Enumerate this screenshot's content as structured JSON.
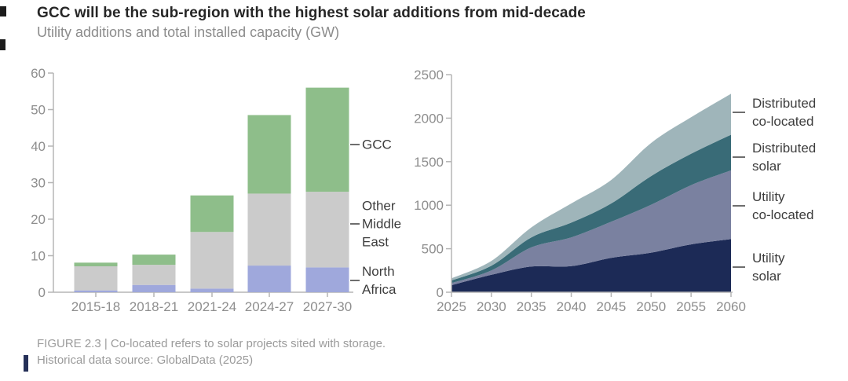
{
  "header": {
    "title": "GCC will be the sub-region with the highest solar additions from mid-decade",
    "subtitle": "Utility additions and total installed capacity (GW)"
  },
  "footer": {
    "line1": "FIGURE 2.3 | Co-located refers to solar projects sited with storage.",
    "line2": "Historical data source: GlobalData (2025)"
  },
  "colors": {
    "bar_north_africa": "#9fa8dc",
    "bar_other_middle_east": "#cbcbcb",
    "bar_gcc": "#8ebe8a",
    "area_utility_solar": "#1c2a56",
    "area_utility_colocated": "#7a81a0",
    "area_distributed_solar": "#396b77",
    "area_distributed_colocated": "#9fb5ba",
    "axis": "#b5b5b5",
    "tick_label": "#8e8e8e"
  },
  "chart_data": [
    {
      "type": "bar",
      "title": "Utility additions (GW)",
      "categories": [
        "2015-18",
        "2018-21",
        "2021-24",
        "2024-27",
        "2027-30"
      ],
      "series": [
        {
          "name": "North Africa",
          "color": "#9fa8dc",
          "values": [
            0.5,
            2.0,
            1.0,
            7.3,
            6.8
          ]
        },
        {
          "name": "Other Middle East",
          "color": "#cbcbcb",
          "values": [
            6.6,
            5.5,
            15.5,
            19.7,
            20.7
          ]
        },
        {
          "name": "GCC",
          "color": "#8ebe8a",
          "values": [
            1.0,
            2.8,
            10.0,
            21.5,
            28.5
          ]
        }
      ],
      "ylim": [
        0,
        60
      ],
      "yticks": [
        0,
        10,
        20,
        30,
        40,
        50,
        60
      ],
      "grid": false,
      "legend_position": "right-annotations",
      "annotations": [
        {
          "lines": [
            "GCC"
          ],
          "value": 40.5
        },
        {
          "lines": [
            "Other",
            "Middle",
            "East"
          ],
          "value": 18.7
        },
        {
          "lines": [
            "North",
            "Africa"
          ],
          "value": 3.2
        }
      ]
    },
    {
      "type": "area",
      "title": "Total installed capacity (GW)",
      "x": [
        2025,
        2030,
        2035,
        2040,
        2045,
        2050,
        2055,
        2060
      ],
      "series": [
        {
          "name": "Utility solar",
          "color": "#1c2a56",
          "values": [
            80,
            200,
            295,
            300,
            395,
            455,
            550,
            610
          ]
        },
        {
          "name": "Utility co-located",
          "color": "#7a81a0",
          "values": [
            25,
            50,
            220,
            330,
            415,
            550,
            680,
            790
          ]
        },
        {
          "name": "Distributed solar",
          "color": "#396b77",
          "values": [
            30,
            55,
            115,
            170,
            210,
            330,
            360,
            410
          ]
        },
        {
          "name": "Distributed co-located",
          "color": "#9fb5ba",
          "values": [
            25,
            55,
            115,
            220,
            270,
            380,
            420,
            470
          ]
        }
      ],
      "ylim": [
        0,
        2500
      ],
      "yticks": [
        0,
        500,
        1000,
        1500,
        2000,
        2500
      ],
      "xticks": [
        2025,
        2030,
        2035,
        2040,
        2045,
        2050,
        2055,
        2060
      ],
      "grid": false,
      "legend_position": "right-annotations",
      "annotations": [
        {
          "lines": [
            "Distributed",
            "co-located"
          ],
          "value": 2065
        },
        {
          "lines": [
            "Distributed",
            "solar"
          ],
          "value": 1550
        },
        {
          "lines": [
            "Utility",
            "co-located"
          ],
          "value": 990
        },
        {
          "lines": [
            "Utility",
            "solar"
          ],
          "value": 290
        }
      ]
    }
  ]
}
